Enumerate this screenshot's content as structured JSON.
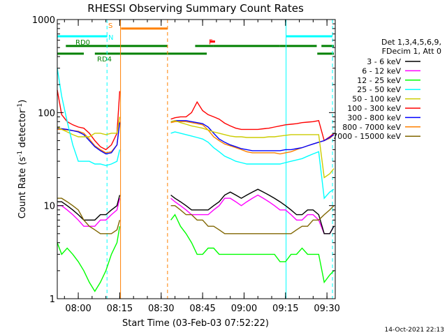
{
  "chart_data": {
    "type": "line",
    "title": "RHESSI Observing Summary Count Rates",
    "xlabel": "Start Time (03-Feb-03 07:52:22)",
    "ylabel_main": "Count Rate (s",
    "ylabel_sup1": "-1",
    "ylabel_mid": " detector",
    "ylabel_sup2": "-1",
    "ylabel_end": ")",
    "footer": "14-Oct-2021 22:13",
    "x_unit": "minutes after 00:00 UT",
    "x_range": [
      472.4,
      573.0
    ],
    "y_scale": "log",
    "y_range": [
      1,
      1000
    ],
    "y_ticks": [
      {
        "value": 1,
        "label": "1"
      },
      {
        "value": 10,
        "label": "10"
      },
      {
        "value": 100,
        "label": "100"
      },
      {
        "value": 1000,
        "label": "1000"
      }
    ],
    "x_ticks": [
      {
        "value": 480,
        "label": "08:00"
      },
      {
        "value": 495,
        "label": "08:15"
      },
      {
        "value": 510,
        "label": "08:30"
      },
      {
        "value": 525,
        "label": "08:45"
      },
      {
        "value": 540,
        "label": "09:00"
      },
      {
        "value": 555,
        "label": "09:15"
      },
      {
        "value": 570,
        "label": "09:30"
      }
    ],
    "legend_header": [
      "Det 1,3,4,5,6,9,",
      "FDecim 1, Att 0"
    ],
    "legend_placement": "right",
    "series": [
      {
        "name": "3 - 6 keV",
        "color": "#000000"
      },
      {
        "name": "6 - 12 keV",
        "color": "#ff00ff"
      },
      {
        "name": "12 - 25 keV",
        "color": "#00ff00"
      },
      {
        "name": "25 - 50 keV",
        "color": "#00ffff"
      },
      {
        "name": "50 - 100 keV",
        "color": "#cccc00"
      },
      {
        "name": "100 - 300 keV",
        "color": "#ff0000"
      },
      {
        "name": "300 - 800 keV",
        "color": "#0000ff"
      },
      {
        "name": "800 - 7000 keV",
        "color": "#ff8000"
      },
      {
        "name": "7000 - 15000 keV",
        "color": "#806600"
      }
    ],
    "bars": [
      {
        "label": "S",
        "color": "#ff8000",
        "y": 800,
        "segments": [
          [
            495.5,
            512.3
          ]
        ]
      },
      {
        "label": "N",
        "color": "#00ffff",
        "y": 660,
        "segments": [
          [
            472.4,
            490.5
          ],
          [
            555.2,
            572.0
          ]
        ]
      },
      {
        "label": "RD0",
        "color": "#008000",
        "y": 520,
        "segments": [
          [
            475.5,
            512.3
          ],
          [
            522.3,
            529.0
          ],
          [
            529.0,
            553.0
          ],
          [
            553.0,
            566.3
          ],
          [
            568.0,
            572.5
          ]
        ]
      },
      {
        "label": "RD4",
        "color": "#008000",
        "y": 430,
        "segments": [
          [
            472.4,
            482.0
          ],
          [
            486.0,
            495.0
          ],
          [
            495.0,
            512.3
          ],
          [
            512.3,
            526.5
          ],
          [
            566.5,
            572.5
          ]
        ]
      },
      {
        "label": "F",
        "color": "#ff0000",
        "y": 580,
        "segments": [
          [
            527.5,
            529.5
          ]
        ]
      }
    ],
    "markers": [
      {
        "x": 490.4,
        "color": "#00ffff",
        "dashed": true
      },
      {
        "x": 495.3,
        "color": "#ff8000",
        "dashed": false
      },
      {
        "x": 512.3,
        "color": "#ff8000",
        "dashed": true
      },
      {
        "x": 555.2,
        "color": "#00ffff",
        "dashed": false
      },
      {
        "x": 572.0,
        "color": "#00ffff",
        "dashed": true
      }
    ],
    "data": {
      "x1": [
        472.4,
        474,
        476,
        478,
        480,
        482,
        484,
        486,
        488,
        490,
        492,
        494,
        495
      ],
      "x2": [
        513.5,
        515,
        517,
        519,
        521,
        523,
        525,
        527,
        529,
        531,
        533,
        535,
        537,
        539,
        541,
        543,
        545,
        547,
        549,
        551,
        553,
        555,
        557,
        559,
        561,
        563,
        565,
        567,
        569,
        571,
        572.5
      ],
      "values": {
        "100 - 300 keV": [
          [
            175,
            95,
            80,
            74,
            70,
            68,
            60,
            50,
            43,
            40,
            45,
            60,
            170
          ],
          [
            85,
            88,
            90,
            90,
            100,
            130,
            105,
            95,
            90,
            85,
            77,
            72,
            68,
            66,
            66,
            66,
            66,
            67,
            68,
            70,
            72,
            74,
            75,
            76,
            78,
            79,
            80,
            82,
            50,
            55,
            60
          ]
        ],
        "800 - 7000 keV": [
          [
            66,
            66,
            65,
            64,
            63,
            60,
            52,
            44,
            40,
            37,
            38,
            45,
            80
          ],
          [
            78,
            80,
            80,
            80,
            78,
            76,
            74,
            65,
            55,
            50,
            46,
            44,
            42,
            40,
            38,
            37,
            37,
            37,
            37,
            37,
            36,
            37,
            38,
            40,
            42,
            44,
            46,
            48,
            50,
            53,
            58
          ]
        ],
        "300 - 800 keV": [
          [
            68,
            67,
            66,
            64,
            62,
            58,
            50,
            43,
            39,
            36,
            37,
            45,
            78
          ],
          [
            80,
            82,
            82,
            82,
            80,
            78,
            76,
            70,
            60,
            52,
            48,
            45,
            43,
            41,
            40,
            39,
            39,
            39,
            39,
            39,
            39,
            40,
            40,
            41,
            42,
            44,
            46,
            48,
            50,
            54,
            58
          ]
        ],
        "50 - 100 keV": [
          [
            70,
            66,
            62,
            58,
            55,
            55,
            55,
            60,
            60,
            58,
            60,
            60,
            90
          ],
          [
            80,
            82,
            78,
            75,
            72,
            70,
            68,
            65,
            62,
            60,
            58,
            56,
            55,
            55,
            54,
            54,
            54,
            54,
            55,
            55,
            56,
            57,
            58,
            58,
            58,
            58,
            58,
            58,
            20,
            22,
            25
          ]
        ],
        "25 - 50 keV": [
          [
            300,
            150,
            80,
            45,
            30,
            30,
            30,
            28,
            28,
            27,
            28,
            30,
            40
          ],
          [
            60,
            62,
            60,
            58,
            56,
            54,
            52,
            48,
            42,
            38,
            34,
            32,
            30,
            29,
            28,
            28,
            28,
            28,
            28,
            28,
            28,
            29,
            30,
            31,
            32,
            34,
            36,
            38,
            12,
            14,
            15
          ]
        ],
        "12 - 25 keV": [
          [
            4,
            3,
            3.5,
            3,
            2.5,
            2,
            1.5,
            1.2,
            1.5,
            2,
            3,
            4,
            6
          ],
          [
            7,
            8,
            6,
            5,
            4,
            3,
            3,
            3.5,
            3.5,
            3,
            3,
            3,
            3,
            3,
            3,
            3,
            3,
            3,
            3,
            3,
            2.5,
            2.5,
            3,
            3,
            3.5,
            3,
            3,
            3,
            1.5,
            1.8,
            2
          ]
        ],
        "6 - 12 keV": [
          [
            10,
            10,
            9,
            8,
            7,
            6,
            6,
            6,
            7,
            7,
            8,
            9,
            12
          ],
          [
            12,
            11,
            10,
            9,
            8,
            8,
            8,
            8,
            9,
            10,
            12,
            12,
            11,
            10,
            11,
            12,
            13,
            12,
            11,
            10,
            9,
            9,
            8,
            7,
            7,
            8,
            8,
            7,
            5,
            5,
            6
          ]
        ],
        "3 - 6 keV": [
          [
            11,
            11,
            10,
            9,
            8,
            7,
            7,
            7,
            8,
            8,
            9,
            10,
            13
          ],
          [
            13,
            12,
            11,
            10,
            9,
            9,
            9,
            9,
            10,
            11,
            13,
            14,
            13,
            12,
            13,
            14,
            15,
            14,
            13,
            12,
            11,
            10,
            9,
            8,
            8,
            9,
            9,
            8,
            5,
            5,
            6
          ]
        ],
        "7000 - 15000 keV": [
          [
            12,
            12,
            11,
            10,
            9,
            7,
            6,
            5.5,
            5,
            5,
            5,
            5.5,
            7
          ],
          [
            10,
            10,
            9,
            8,
            8,
            7,
            7,
            6,
            6,
            5.5,
            5,
            5,
            5,
            5,
            5,
            5,
            5,
            5,
            5,
            5,
            5,
            5,
            5,
            5.5,
            6,
            6,
            7,
            7,
            8,
            9,
            10
          ]
        ]
      }
    }
  }
}
